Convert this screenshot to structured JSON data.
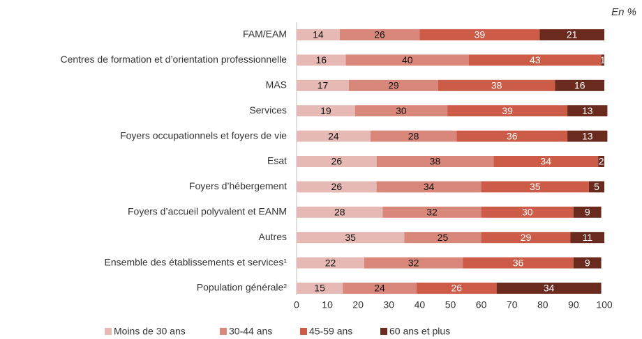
{
  "chart_data": {
    "type": "stacked_bar_horizontal",
    "unit_note": "En %",
    "categories": [
      "FAM/EAM",
      "Centres de formation et d’orientation professionnelle",
      "MAS",
      "Services",
      "Foyers occupationnels et foyers de vie",
      "Esat",
      "Foyers d’hébergement",
      "Foyers d’accueil polyvalent et EANM",
      "Autres",
      "Ensemble des établissements et services¹",
      "Population générale²"
    ],
    "series": [
      {
        "name": "Moins de 30 ans",
        "color": "#e6b9b4",
        "label_color": "#111111",
        "values": [
          14,
          16,
          17,
          19,
          24,
          26,
          26,
          28,
          35,
          22,
          15
        ]
      },
      {
        "name": "30-44 ans",
        "color": "#d9877a",
        "label_color": "#111111",
        "values": [
          26,
          40,
          29,
          30,
          28,
          38,
          34,
          32,
          25,
          32,
          24
        ]
      },
      {
        "name": "45-59 ans",
        "color": "#cc5c47",
        "label_color": "#ffffff",
        "values": [
          39,
          43,
          38,
          39,
          36,
          34,
          35,
          30,
          29,
          36,
          26
        ]
      },
      {
        "name": "60 ans et plus",
        "color": "#6b2a1e",
        "label_color": "#ffffff",
        "values": [
          21,
          1,
          16,
          13,
          13,
          2,
          5,
          9,
          11,
          9,
          34
        ]
      }
    ],
    "xlim": [
      0,
      100
    ],
    "xticks": [
      0,
      10,
      20,
      30,
      40,
      50,
      60,
      70,
      80,
      90,
      100
    ],
    "grid": false
  }
}
